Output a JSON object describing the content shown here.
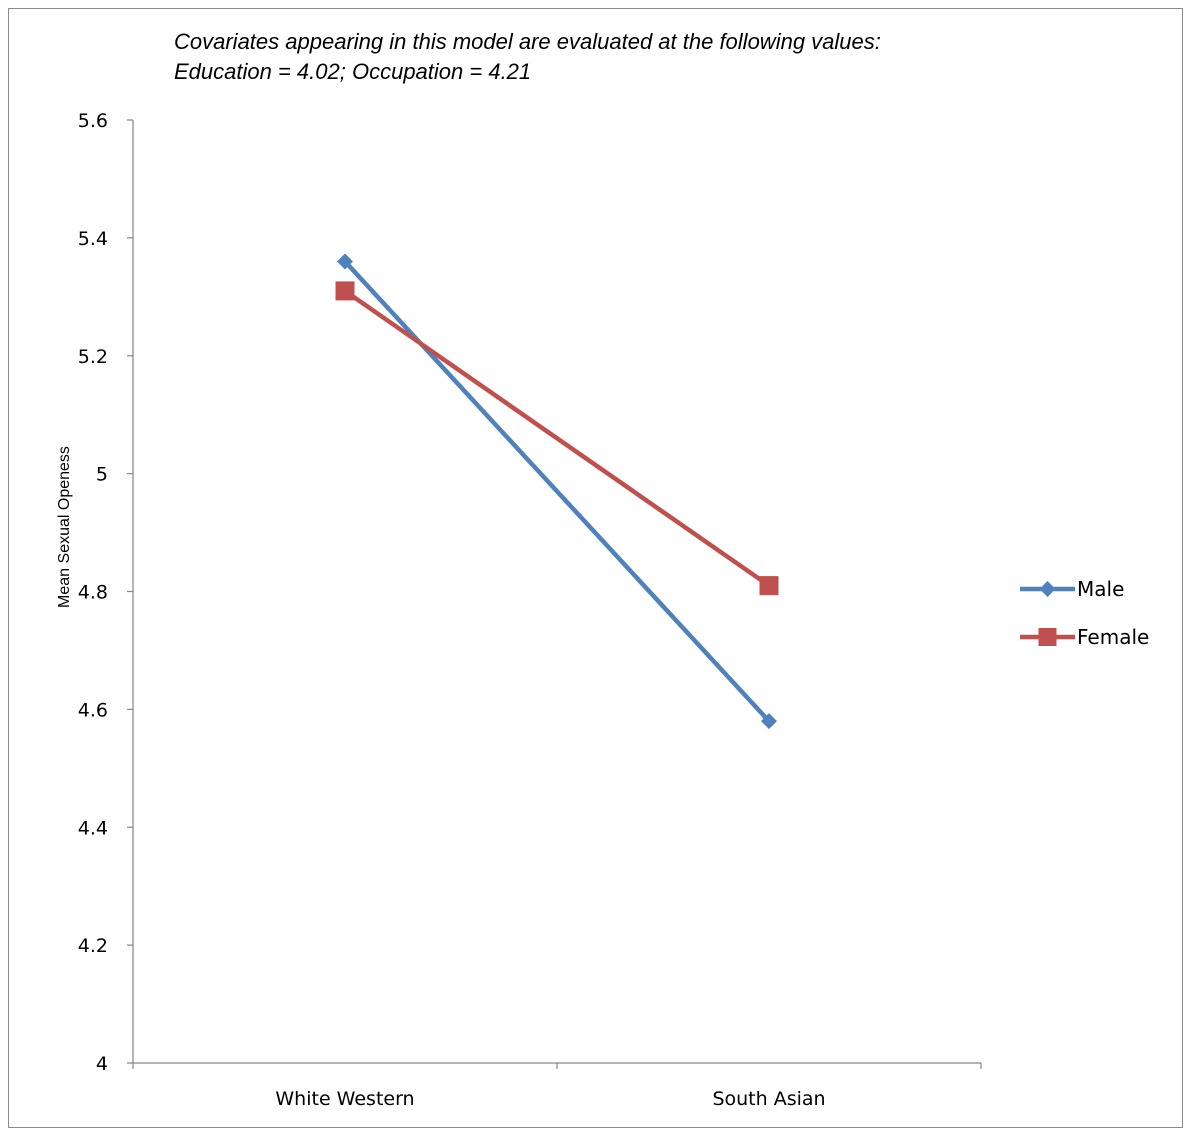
{
  "annotations": [
    "Covariates appearing in this model are evaluated at the following values:",
    "Education = 4.02; Occupation = 4.21"
  ],
  "chart_data": {
    "type": "line",
    "title": "",
    "xlabel": "",
    "ylabel": "Mean Sexual Openess",
    "categories": [
      "White Western",
      "South Asian"
    ],
    "series": [
      {
        "name": "Male",
        "values": [
          5.36,
          4.58
        ],
        "color": "#4f81bd",
        "marker": "diamond"
      },
      {
        "name": "Female",
        "values": [
          5.31,
          4.81
        ],
        "color": "#c0504d",
        "marker": "square"
      }
    ],
    "ylim": [
      4,
      5.6
    ],
    "yticks": [
      "4",
      "4.2",
      "4.4",
      "4.6",
      "4.8",
      "5",
      "5.2",
      "5.4",
      "5.6"
    ],
    "grid": false,
    "legend": "right"
  }
}
